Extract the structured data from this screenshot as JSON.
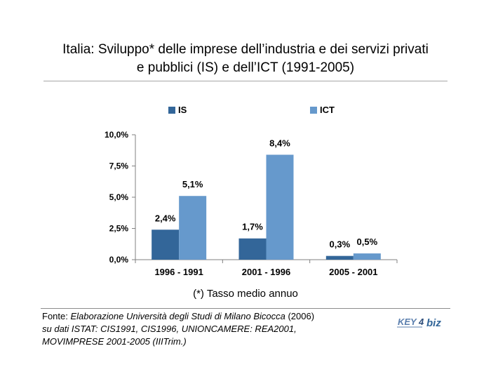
{
  "title_line1": "Italia: Sviluppo* delle imprese dell’industria e dei servizi privati",
  "title_line2": "e pubblici (IS) e dell’ICT (1991-2005)",
  "note": "(*) Tasso medio annuo",
  "source": {
    "prefix": "Fonte: ",
    "italic1": "Elaborazione Università degli Studi di Milano Bicocca",
    "plain1": " (2006)",
    "line2": "su dati ISTAT: CIS1991, CIS1996, UNIONCAMERE: REA2001,",
    "line3": "MOVIMPRESE 2001-2005 (IIITrim.)"
  },
  "logo": {
    "text_part1": "KEY",
    "text_part2": "4",
    "text_part3": "biz"
  },
  "colors": {
    "is": "#336699",
    "ict": "#6699CC",
    "axis": "#808080"
  },
  "chart_data": {
    "type": "bar",
    "categories": [
      "1996 - 1991",
      "2001 - 1996",
      "2005 - 2001"
    ],
    "series": [
      {
        "name": "IS",
        "values": [
          2.4,
          1.7,
          0.3
        ],
        "labels": [
          "2,4%",
          "1,7%",
          "0,3%"
        ]
      },
      {
        "name": "ICT",
        "values": [
          5.1,
          8.4,
          0.5
        ],
        "labels": [
          "5,1%",
          "8,4%",
          "0,5%"
        ]
      }
    ],
    "ylim": [
      0,
      10
    ],
    "yticks": [
      0,
      2.5,
      5,
      7.5,
      10
    ],
    "ytick_labels": [
      "0,0%",
      "2,5%",
      "5,0%",
      "7,5%",
      "10,0%"
    ],
    "legend_position": "top",
    "grid": false
  }
}
